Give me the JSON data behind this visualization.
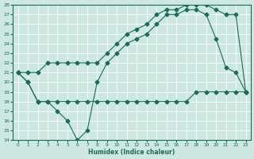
{
  "xlabel": "Humidex (Indice chaleur)",
  "ylabel": "",
  "bg_color": "#cce8e0",
  "line_color": "#1a6b5a",
  "grid_color": "#b8d8d0",
  "xlim": [
    -0.5,
    23.5
  ],
  "ylim": [
    14,
    28
  ],
  "yticks": [
    14,
    15,
    16,
    17,
    18,
    19,
    20,
    21,
    22,
    23,
    24,
    25,
    26,
    27,
    28
  ],
  "xticks": [
    0,
    1,
    2,
    3,
    4,
    5,
    6,
    7,
    8,
    9,
    10,
    11,
    12,
    13,
    14,
    15,
    16,
    17,
    18,
    19,
    20,
    21,
    22,
    23
  ],
  "line1_x": [
    0,
    1,
    2,
    3,
    4,
    5,
    6,
    7,
    8,
    9,
    10,
    11,
    12,
    13,
    14,
    15,
    16,
    17,
    18,
    19,
    20,
    21,
    22,
    23
  ],
  "line1_y": [
    21,
    20,
    18,
    18,
    18,
    18,
    18,
    18,
    18,
    18,
    18,
    18,
    18,
    18,
    18,
    18,
    18,
    18,
    19,
    19,
    19,
    19,
    19,
    19
  ],
  "line2_x": [
    0,
    1,
    2,
    3,
    4,
    5,
    6,
    7,
    8,
    9,
    10,
    11,
    12,
    13,
    14,
    15,
    16,
    17,
    18,
    19,
    20,
    21,
    22,
    23
  ],
  "line2_y": [
    21,
    20,
    18,
    18,
    17,
    16,
    14,
    15,
    20,
    22,
    23,
    24,
    24.5,
    25,
    26,
    27,
    27,
    27.5,
    27.5,
    27,
    24.5,
    21.5,
    21,
    19
  ],
  "line3_x": [
    0,
    1,
    2,
    3,
    4,
    5,
    6,
    7,
    8,
    9,
    10,
    11,
    12,
    13,
    14,
    15,
    16,
    17,
    18,
    19,
    20,
    21,
    22,
    23
  ],
  "line3_y": [
    21,
    21,
    21,
    22,
    22,
    22,
    22,
    22,
    22,
    23,
    24,
    25,
    25.5,
    26,
    27,
    27.5,
    27.5,
    28,
    28,
    28,
    27.5,
    27,
    27,
    19
  ]
}
